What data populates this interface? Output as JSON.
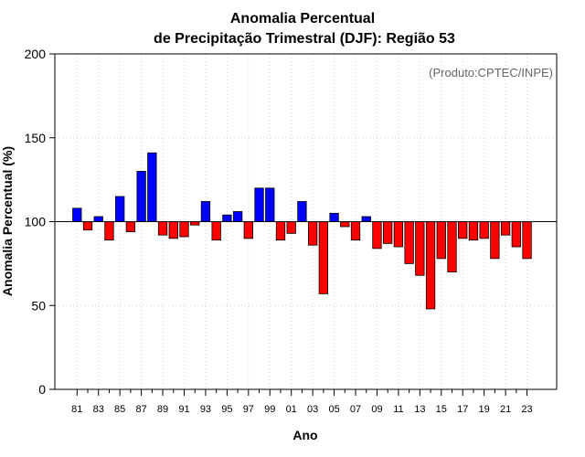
{
  "chart_data": {
    "type": "bar",
    "title": "Anomalia Percentual",
    "subtitle": "de Precipitação Trimestral (DJF): Região 53",
    "xlabel": "Ano",
    "ylabel": "Anomalia Percentual (%)",
    "annotation": "(Produto:CPTEC/INPE)",
    "ylim": [
      0,
      200
    ],
    "yticks": [
      0,
      50,
      100,
      150,
      200
    ],
    "baseline": 100,
    "grid": true,
    "colors": {
      "above": "#0000ff",
      "below": "#ff0000",
      "edge": "#000000",
      "grid": "#d3d3d3",
      "baseline": "#000000"
    },
    "categories": [
      "81",
      "82",
      "83",
      "84",
      "85",
      "86",
      "87",
      "88",
      "89",
      "90",
      "91",
      "92",
      "93",
      "94",
      "95",
      "96",
      "97",
      "98",
      "99",
      "00",
      "01",
      "02",
      "03",
      "04",
      "05",
      "06",
      "07",
      "08",
      "09",
      "10",
      "11",
      "12",
      "13",
      "14",
      "15",
      "16",
      "17",
      "18",
      "19",
      "20",
      "21",
      "22",
      "23"
    ],
    "x_tick_labels": [
      "81",
      "83",
      "85",
      "87",
      "89",
      "91",
      "93",
      "95",
      "97",
      "99",
      "01",
      "03",
      "05",
      "07",
      "09",
      "11",
      "13",
      "15",
      "17",
      "19",
      "21",
      "23"
    ],
    "values": [
      108,
      95,
      103,
      89,
      115,
      94,
      130,
      141,
      92,
      90,
      91,
      98,
      112,
      89,
      104,
      106,
      90,
      120,
      120,
      89,
      93,
      112,
      86,
      57,
      105,
      97,
      89,
      103,
      84,
      87,
      85,
      75,
      68,
      48,
      78,
      70,
      90,
      89,
      90,
      78,
      92,
      85,
      78
    ]
  }
}
